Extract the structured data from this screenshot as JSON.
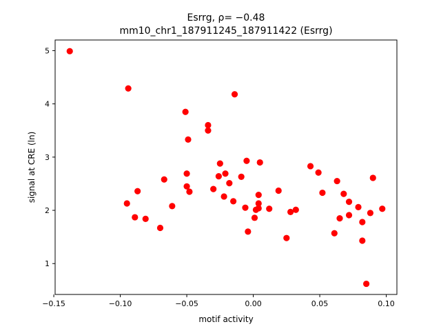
{
  "chart_data": {
    "type": "scatter",
    "title": "Esrrg, ρ= −0.48",
    "subtitle": "mm10_chr1_187911245_187911422 (Esrrg)",
    "xlabel": "motif activity",
    "ylabel": "signal at CRE (ln)",
    "xlim": [
      -0.149,
      0.108
    ],
    "ylim": [
      0.42,
      5.2
    ],
    "xticks": [
      -0.15,
      -0.1,
      -0.05,
      0.0,
      0.05,
      0.1
    ],
    "xtick_labels": [
      "−0.15",
      "−0.10",
      "−0.05",
      "0.00",
      "0.05",
      "0.10"
    ],
    "yticks": [
      1,
      2,
      3,
      4,
      5
    ],
    "ytick_labels": [
      "1",
      "2",
      "3",
      "4",
      "5"
    ],
    "grid": false,
    "marker_color": "#ff0000",
    "points": [
      {
        "x": -0.138,
        "y": 4.99
      },
      {
        "x": -0.094,
        "y": 4.29
      },
      {
        "x": -0.095,
        "y": 2.13
      },
      {
        "x": -0.089,
        "y": 1.87
      },
      {
        "x": -0.087,
        "y": 2.36
      },
      {
        "x": -0.081,
        "y": 1.84
      },
      {
        "x": -0.07,
        "y": 1.67
      },
      {
        "x": -0.067,
        "y": 2.58
      },
      {
        "x": -0.061,
        "y": 2.08
      },
      {
        "x": -0.051,
        "y": 3.85
      },
      {
        "x": -0.05,
        "y": 2.69
      },
      {
        "x": -0.05,
        "y": 2.45
      },
      {
        "x": -0.049,
        "y": 3.33
      },
      {
        "x": -0.048,
        "y": 2.35
      },
      {
        "x": -0.034,
        "y": 3.6
      },
      {
        "x": -0.034,
        "y": 3.5
      },
      {
        "x": -0.03,
        "y": 2.4
      },
      {
        "x": -0.026,
        "y": 2.64
      },
      {
        "x": -0.025,
        "y": 2.88
      },
      {
        "x": -0.022,
        "y": 2.26
      },
      {
        "x": -0.021,
        "y": 2.69
      },
      {
        "x": -0.018,
        "y": 2.51
      },
      {
        "x": -0.015,
        "y": 2.17
      },
      {
        "x": -0.014,
        "y": 4.18
      },
      {
        "x": -0.009,
        "y": 2.63
      },
      {
        "x": -0.006,
        "y": 2.05
      },
      {
        "x": -0.005,
        "y": 2.93
      },
      {
        "x": -0.004,
        "y": 1.6
      },
      {
        "x": 0.001,
        "y": 1.86
      },
      {
        "x": 0.002,
        "y": 2.01
      },
      {
        "x": 0.004,
        "y": 2.04
      },
      {
        "x": 0.004,
        "y": 2.13
      },
      {
        "x": 0.004,
        "y": 2.29
      },
      {
        "x": 0.005,
        "y": 2.9
      },
      {
        "x": 0.012,
        "y": 2.03
      },
      {
        "x": 0.019,
        "y": 2.37
      },
      {
        "x": 0.025,
        "y": 1.48
      },
      {
        "x": 0.028,
        "y": 1.97
      },
      {
        "x": 0.032,
        "y": 2.01
      },
      {
        "x": 0.043,
        "y": 2.83
      },
      {
        "x": 0.049,
        "y": 2.71
      },
      {
        "x": 0.052,
        "y": 2.33
      },
      {
        "x": 0.061,
        "y": 1.57
      },
      {
        "x": 0.063,
        "y": 2.55
      },
      {
        "x": 0.065,
        "y": 1.85
      },
      {
        "x": 0.068,
        "y": 2.31
      },
      {
        "x": 0.072,
        "y": 1.91
      },
      {
        "x": 0.072,
        "y": 2.16
      },
      {
        "x": 0.079,
        "y": 2.06
      },
      {
        "x": 0.082,
        "y": 1.78
      },
      {
        "x": 0.082,
        "y": 1.43
      },
      {
        "x": 0.085,
        "y": 0.62
      },
      {
        "x": 0.088,
        "y": 1.95
      },
      {
        "x": 0.09,
        "y": 2.61
      },
      {
        "x": 0.097,
        "y": 2.03
      }
    ]
  }
}
